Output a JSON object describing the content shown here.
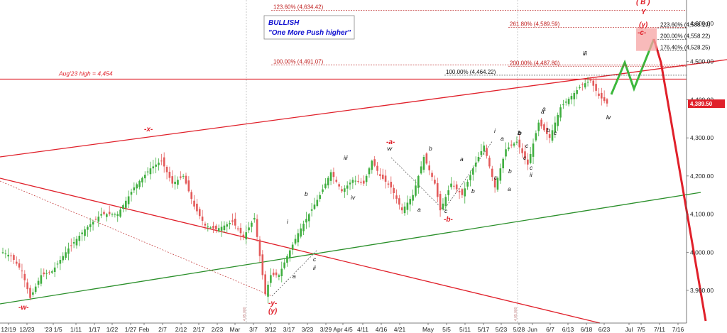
{
  "chart_data": {
    "type": "candlestick",
    "x_tick_labels": [
      "12/19",
      "12/23",
      "'23 1/5",
      "1/11",
      "1/17",
      "1/22",
      "1/27",
      "Feb",
      "2/7",
      "2/12",
      "2/17",
      "2/23",
      "Mar",
      "3/7",
      "3/12",
      "3/17",
      "3/23",
      "3/29",
      "Apr 4/5",
      "4/11",
      "4/16",
      "4/21",
      "May",
      "5/5",
      "5/11",
      "5/17",
      "5/23",
      "5/28",
      "Jun",
      "6/7",
      "6/13",
      "6/18",
      "6/23",
      "Jul",
      "7/5",
      "7/11",
      "7/16"
    ],
    "y_tick_labels": [
      "3,900.00",
      "4,000.00",
      "4,100.00",
      "4,200.00",
      "4,300.00",
      "4,400.00",
      "4,500.00",
      "4,600.00"
    ],
    "ylim": [
      3850,
      4660
    ],
    "last_price": "4,389.50",
    "colors": {
      "up": "#3fae3f",
      "down": "#e35a5a",
      "red_line": "#e0202a",
      "green_line": "#2a8f2a",
      "projection_green": "#3cb83c",
      "projection_red": "#e0202a"
    },
    "anchor_closes": [
      {
        "i": 0,
        "p": 4000
      },
      {
        "i": 3,
        "p": 3990
      },
      {
        "i": 7,
        "p": 3950
      },
      {
        "i": 10,
        "p": 3880
      },
      {
        "i": 14,
        "p": 3940
      },
      {
        "i": 18,
        "p": 3950
      },
      {
        "i": 24,
        "p": 4010
      },
      {
        "i": 30,
        "p": 4060
      },
      {
        "i": 36,
        "p": 4100
      },
      {
        "i": 42,
        "p": 4100
      },
      {
        "i": 48,
        "p": 4170
      },
      {
        "i": 54,
        "p": 4220
      },
      {
        "i": 58,
        "p": 4240
      },
      {
        "i": 62,
        "p": 4180
      },
      {
        "i": 66,
        "p": 4200
      },
      {
        "i": 70,
        "p": 4120
      },
      {
        "i": 74,
        "p": 4070
      },
      {
        "i": 78,
        "p": 4060
      },
      {
        "i": 84,
        "p": 4080
      },
      {
        "i": 88,
        "p": 4040
      },
      {
        "i": 92,
        "p": 4090
      },
      {
        "i": 96,
        "p": 3890
      },
      {
        "i": 98,
        "p": 3940
      },
      {
        "i": 101,
        "p": 3940
      },
      {
        "i": 104,
        "p": 3990
      },
      {
        "i": 108,
        "p": 4050
      },
      {
        "i": 112,
        "p": 4100
      },
      {
        "i": 116,
        "p": 4150
      },
      {
        "i": 120,
        "p": 4210
      },
      {
        "i": 124,
        "p": 4160
      },
      {
        "i": 128,
        "p": 4190
      },
      {
        "i": 132,
        "p": 4180
      },
      {
        "i": 135,
        "p": 4240
      },
      {
        "i": 138,
        "p": 4200
      },
      {
        "i": 142,
        "p": 4170
      },
      {
        "i": 146,
        "p": 4110
      },
      {
        "i": 150,
        "p": 4150
      },
      {
        "i": 154,
        "p": 4250
      },
      {
        "i": 158,
        "p": 4180
      },
      {
        "i": 160,
        "p": 4110
      },
      {
        "i": 164,
        "p": 4180
      },
      {
        "i": 168,
        "p": 4150
      },
      {
        "i": 172,
        "p": 4220
      },
      {
        "i": 176,
        "p": 4280
      },
      {
        "i": 180,
        "p": 4170
      },
      {
        "i": 184,
        "p": 4270
      },
      {
        "i": 188,
        "p": 4290
      },
      {
        "i": 192,
        "p": 4230
      },
      {
        "i": 196,
        "p": 4340
      },
      {
        "i": 200,
        "p": 4300
      },
      {
        "i": 204,
        "p": 4380
      },
      {
        "i": 208,
        "p": 4410
      },
      {
        "i": 212,
        "p": 4440
      },
      {
        "i": 215,
        "p": 4450
      },
      {
        "i": 218,
        "p": 4410
      },
      {
        "i": 221,
        "p": 4390
      }
    ],
    "fib_levels": [
      {
        "label": "123.60% (4,634.42)",
        "price": 4634.42
      },
      {
        "label": "100.00% (4,491.07)",
        "price": 4491.07
      },
      {
        "label": "100.00% (4,464.22)",
        "price": 4464.22
      },
      {
        "label": "261.80% (4,589.59)",
        "price": 4589.59
      },
      {
        "label": "200.00% (4,487.80)",
        "price": 4487.8
      },
      {
        "label": "223.60% (4,588.19)",
        "price": 4588.19
      },
      {
        "label": "200.00% (4,558.22)",
        "price": 4558.22
      },
      {
        "label": "176.40% (4,528.25)",
        "price": 4528.25
      }
    ],
    "aug23_high": {
      "label": "Aug'23 high = 4,454",
      "price": 4454
    },
    "wave_labels_black": [
      "i",
      "ii",
      "iii",
      "iv",
      "a",
      "b",
      "c",
      "v",
      "a",
      "b",
      "c",
      "a",
      "b",
      "c",
      "i",
      "ii",
      "iii",
      "iv",
      "a",
      "b",
      "c",
      "a",
      "b",
      "c",
      "a",
      "b",
      "c",
      "a",
      "b",
      "c",
      "v",
      "iii",
      "iv"
    ],
    "wave_labels_red": [
      "-x-",
      "-w-",
      "-y-",
      "(y)",
      "-a-",
      "-b-",
      "(y)",
      "-c-",
      "( B )",
      "Y"
    ],
    "annotation": {
      "line1": "BULLISH",
      "line2": "\"One More Push higher\""
    },
    "vertical_small_labels": [
      "4,05.000",
      "4,05.000"
    ]
  }
}
